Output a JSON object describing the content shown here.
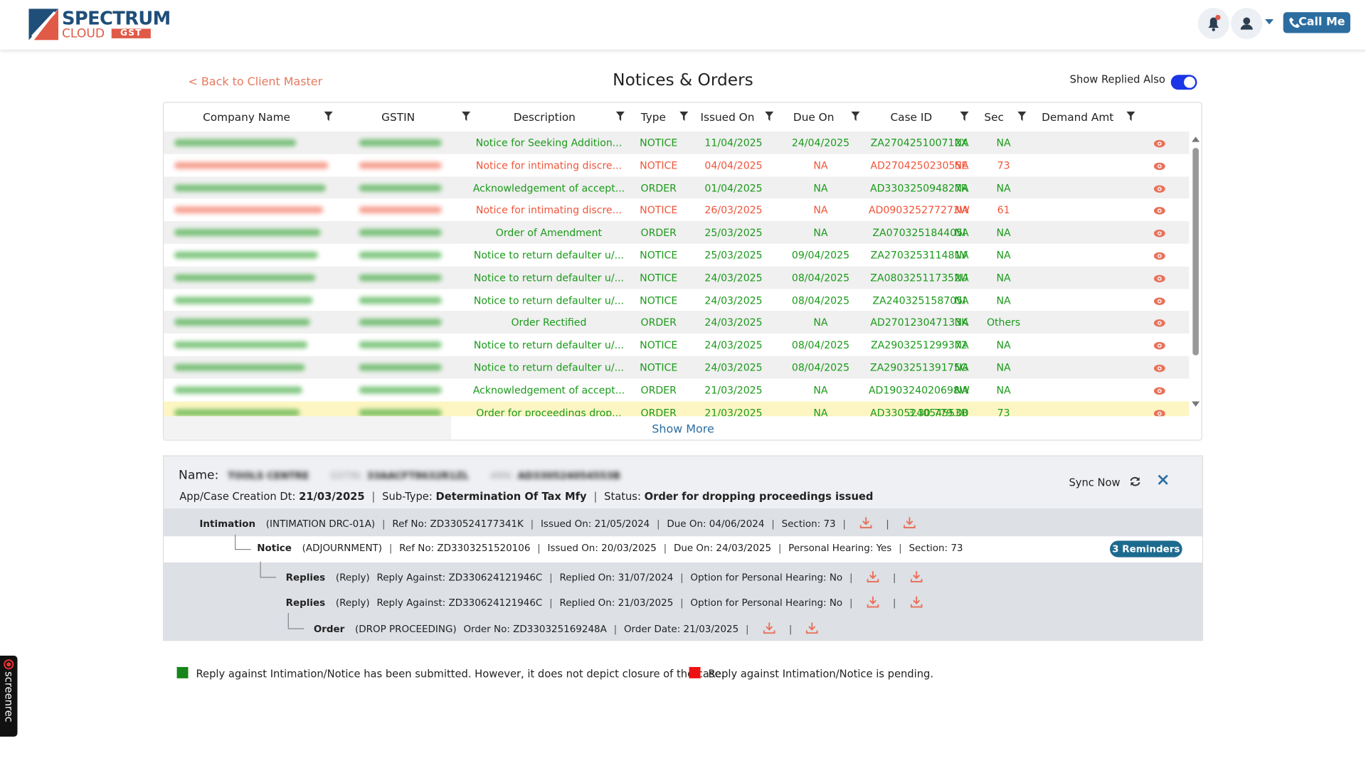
{
  "header": {
    "logo": {
      "name": "SPECTRUM",
      "sub": "CLOUD",
      "tag": "GST"
    },
    "call_button": "Call Me"
  },
  "page": {
    "back_link": "< Back to Client Master",
    "title": "Notices & Orders",
    "toggle_label": "Show Replied Also"
  },
  "table": {
    "columns": [
      "Company Name",
      "GSTIN",
      "Description",
      "Type",
      "Issued On",
      "Due On",
      "Case ID",
      "Sec",
      "Demand Amt"
    ],
    "rows": [
      {
        "cells": [
          "Notice for Seeking Addition...",
          "NOTICE",
          "11/04/2025",
          "24/04/2025",
          "ZA270425100712X",
          "NA",
          "NA"
        ],
        "color": "#1a9a1a"
      },
      {
        "cells": [
          "Notice for intimating discre...",
          "NOTICE",
          "04/04/2025",
          "NA",
          "AD270425023055E",
          "73",
          "NA"
        ],
        "color": "#f0553a"
      },
      {
        "cells": [
          "Acknowledgement of accept...",
          "ORDER",
          "01/04/2025",
          "NA",
          "AD330325094827R",
          "NA",
          "NA"
        ],
        "color": "#1a9a1a"
      },
      {
        "cells": [
          "Notice for intimating discre...",
          "NOTICE",
          "26/03/2025",
          "NA",
          "AD090325277273W",
          "61",
          "NA"
        ],
        "color": "#f0553a"
      },
      {
        "cells": [
          "Order of Amendment",
          "ORDER",
          "25/03/2025",
          "NA",
          "ZA070325184405I",
          "NA",
          "NA"
        ],
        "color": "#1a9a1a"
      },
      {
        "cells": [
          "Notice to return defaulter u/...",
          "NOTICE",
          "25/03/2025",
          "09/04/2025",
          "ZA270325311481V",
          "NA",
          "NA"
        ],
        "color": "#1a9a1a"
      },
      {
        "cells": [
          "Notice to return defaulter u/...",
          "NOTICE",
          "24/03/2025",
          "08/04/2025",
          "ZA080325117352U",
          "NA",
          "NA"
        ],
        "color": "#1a9a1a"
      },
      {
        "cells": [
          "Notice to return defaulter u/...",
          "NOTICE",
          "24/03/2025",
          "08/04/2025",
          "ZA240325158705I",
          "NA",
          "NA"
        ],
        "color": "#1a9a1a"
      },
      {
        "cells": [
          "Order Rectified",
          "ORDER",
          "24/03/2025",
          "NA",
          "AD270123047133K",
          "Others",
          "NA"
        ],
        "color": "#1a9a1a"
      },
      {
        "cells": [
          "Notice to return defaulter u/...",
          "NOTICE",
          "24/03/2025",
          "08/04/2025",
          "ZA2903251299372",
          "NA",
          "NA"
        ],
        "color": "#1a9a1a"
      },
      {
        "cells": [
          "Notice to return defaulter u/...",
          "NOTICE",
          "24/03/2025",
          "08/04/2025",
          "ZA290325139175G",
          "NA",
          "NA"
        ],
        "color": "#1a9a1a"
      },
      {
        "cells": [
          "Acknowledgement of accept...",
          "ORDER",
          "21/03/2025",
          "NA",
          "AD190324020698W",
          "NA",
          "NA"
        ],
        "color": "#1a9a1a"
      },
      {
        "cells": [
          "Order for proceedings drop...",
          "ORDER",
          "21/03/2025",
          "NA",
          "AD330524054553B",
          "73",
          "3,30,779.00"
        ],
        "color": "#1a9a1a",
        "selected": true
      }
    ],
    "show_more": "Show More"
  },
  "detail": {
    "name_label": "Name:",
    "name": "TOOLS CENTRE",
    "gstin_label": "GSTIN:",
    "gstin": "33AACFT8632R1ZL",
    "arn_label": "ARN:",
    "arn": "AD330524054553B",
    "creation_label": "App/Case Creation Dt:",
    "creation": "21/03/2025",
    "subtype_label": "Sub-Type:",
    "subtype": "Determination Of Tax Mfy",
    "status_label": "Status:",
    "status": "Order for dropping proceedings issued",
    "sync": "Sync Now",
    "tree": [
      {
        "label": "Intimation",
        "kind": "(INTIMATION DRC-01A)",
        "fields": [
          "Ref No: ZD330524177341K",
          "Issued On: 21/05/2024",
          "Due On: 04/06/2024",
          "Section: 73"
        ]
      },
      {
        "label": "Notice",
        "kind": "(ADJOURNMENT)",
        "fields": [
          "Ref No: ZD3303251520106",
          "Issued On: 20/03/2025",
          "Due On: 24/03/2025",
          "Personal Hearing: Yes",
          "Section: 73"
        ],
        "badge": "3 Reminders"
      },
      {
        "label": "Replies",
        "kind": "(Reply)",
        "fields": [
          "Reply Against: ZD330624121946C",
          "Replied On: 31/07/2024",
          "Option for Personal Hearing: No"
        ]
      },
      {
        "label": "Replies",
        "kind": "(Reply)",
        "fields": [
          "Reply Against: ZD330624121946C",
          "Replied On: 21/03/2025",
          "Option for Personal Hearing: No"
        ]
      },
      {
        "label": "Order",
        "kind": "(DROP PROCEEDING)",
        "fields": [
          "Order No: ZD330325169248A",
          "Order Date: 21/03/2025"
        ]
      }
    ]
  },
  "legend": [
    {
      "color": "#16861a",
      "text": "Reply against Intimation/Notice has been submitted. However, it does not depict closure of the case."
    },
    {
      "color": "#ee1111",
      "text": "Reply against Intimation/Notice is pending."
    }
  ],
  "recorder": "screenrec"
}
